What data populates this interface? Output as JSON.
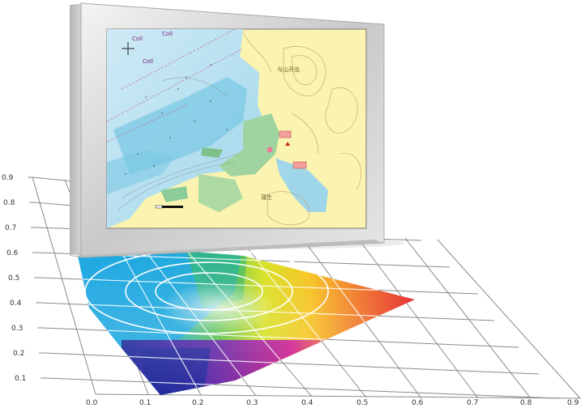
{
  "figure": {
    "x_ticks": [
      "0.0",
      "0.1",
      "0.2",
      "0.3",
      "0.4",
      "0.5",
      "0.6",
      "0.7",
      "0.8",
      "0.9"
    ],
    "y_ticks": [
      "0.1",
      "0.2",
      "0.3",
      "0.4",
      "0.5",
      "0.6",
      "0.7",
      "0.8",
      "0.9"
    ]
  },
  "monitor": {
    "map_labels": [
      "Coll",
      "Coll",
      "Coll",
      "与山开出",
      "蒲生"
    ]
  }
}
